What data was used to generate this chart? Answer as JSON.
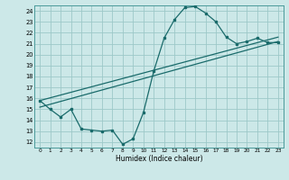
{
  "xlabel": "Humidex (Indice chaleur)",
  "bg_color": "#cce8e8",
  "grid_color": "#9dc8c8",
  "line_color": "#1a6b6b",
  "xlim": [
    -0.5,
    23.5
  ],
  "ylim": [
    11.5,
    24.5
  ],
  "xticks": [
    0,
    1,
    2,
    3,
    4,
    5,
    6,
    7,
    8,
    9,
    10,
    11,
    12,
    13,
    14,
    15,
    16,
    17,
    18,
    19,
    20,
    21,
    22,
    23
  ],
  "yticks": [
    12,
    13,
    14,
    15,
    16,
    17,
    18,
    19,
    20,
    21,
    22,
    23,
    24
  ],
  "line1_x": [
    0,
    1,
    2,
    3,
    4,
    5,
    6,
    7,
    8,
    9,
    10,
    11,
    12,
    13,
    14,
    15,
    16,
    17,
    18,
    19,
    20,
    21,
    22,
    23
  ],
  "line1_y": [
    15.8,
    15.0,
    14.3,
    15.0,
    13.2,
    13.1,
    13.0,
    13.1,
    11.8,
    12.3,
    14.7,
    18.5,
    21.5,
    23.2,
    24.3,
    24.4,
    23.8,
    23.0,
    21.6,
    21.0,
    21.2,
    21.5,
    21.1,
    21.1
  ],
  "line2_x": [
    0,
    23
  ],
  "line2_y": [
    15.2,
    21.2
  ],
  "line3_x": [
    0,
    23
  ],
  "line3_y": [
    15.8,
    21.6
  ]
}
